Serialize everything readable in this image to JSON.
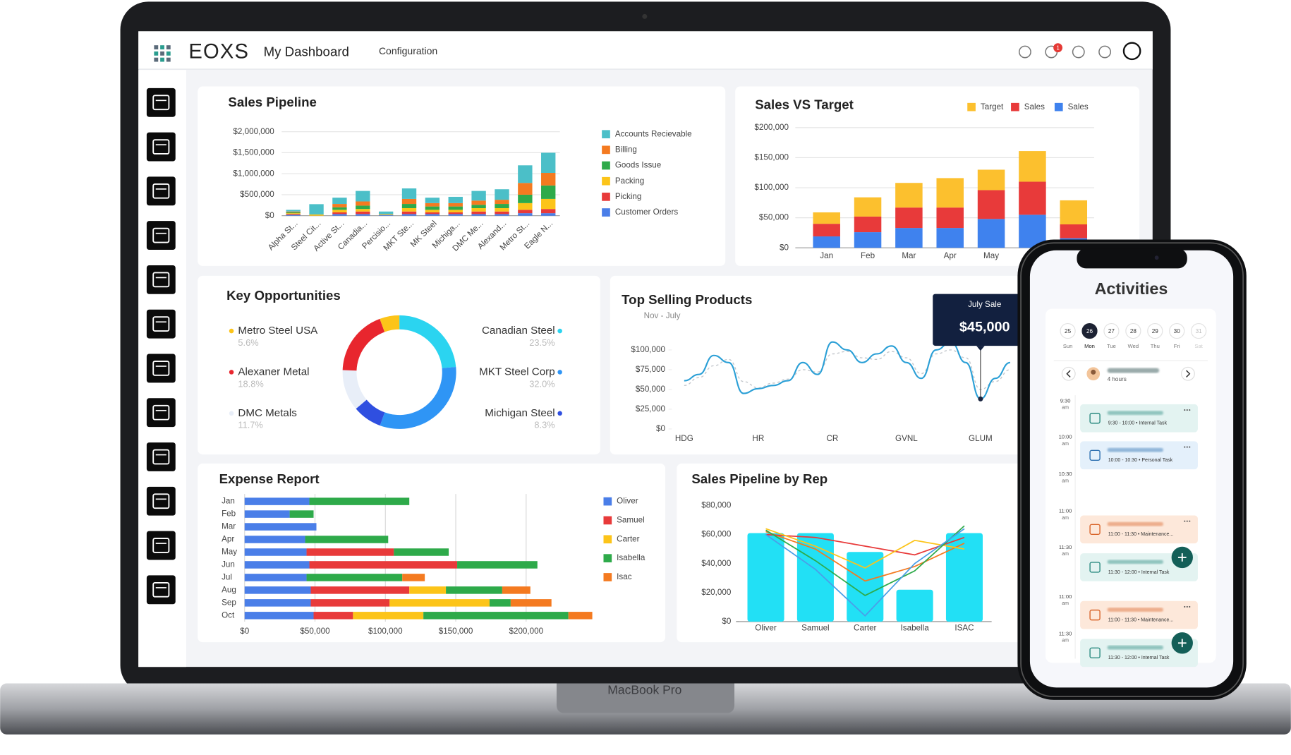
{
  "header": {
    "logo": "EOXS",
    "title": "My Dashboard",
    "nav": "Configuration",
    "notification_count": 1
  },
  "device_label": "MacBook Pro",
  "chart_data": [
    {
      "type": "bar",
      "stacked": true,
      "title": "Sales Pipeline",
      "categories": [
        "Alpha St...",
        "Steel Cit...",
        "Active St...",
        "Canadia...",
        "Percisio...",
        "MKT Ste...",
        "MK Steel",
        "Michiga...",
        "DMC Me...",
        "Alexand...",
        "Metro St...",
        "Eagle N..."
      ],
      "series": [
        {
          "name": "Accounts Recievable",
          "color": "#4bbfc8",
          "values": [
            40000,
            245000,
            150000,
            250000,
            60000,
            250000,
            130000,
            150000,
            230000,
            250000,
            420000,
            480000
          ]
        },
        {
          "name": "Billing",
          "color": "#f47a20",
          "values": [
            20000,
            0,
            80000,
            100000,
            0,
            120000,
            80000,
            80000,
            100000,
            100000,
            280000,
            300000
          ]
        },
        {
          "name": "Goods Issue",
          "color": "#2eaa4a",
          "values": [
            20000,
            0,
            60000,
            80000,
            0,
            100000,
            80000,
            80000,
            80000,
            100000,
            200000,
            320000
          ]
        },
        {
          "name": "Packing",
          "color": "#fcc419",
          "values": [
            20000,
            30000,
            60000,
            60000,
            20000,
            80000,
            60000,
            60000,
            80000,
            80000,
            160000,
            240000
          ]
        },
        {
          "name": "Picking",
          "color": "#e83a3a",
          "values": [
            20000,
            0,
            40000,
            60000,
            0,
            60000,
            40000,
            40000,
            60000,
            60000,
            80000,
            100000
          ]
        },
        {
          "name": "Customer Orders",
          "color": "#4a7ee8",
          "values": [
            20000,
            0,
            40000,
            40000,
            20000,
            40000,
            40000,
            40000,
            40000,
            40000,
            60000,
            60000
          ]
        }
      ],
      "ylim": [
        0,
        2000000
      ],
      "yticks": [
        {
          "value": 0,
          "label": "$0"
        },
        {
          "value": 500000,
          "label": "$500,000"
        },
        {
          "value": 1000000,
          "label": "$1,000,000"
        },
        {
          "value": 1500000,
          "label": "$1,500,000"
        },
        {
          "value": 2000000,
          "label": "$2,000,000"
        }
      ],
      "grid": true,
      "legend": "right"
    },
    {
      "type": "bar",
      "stacked": true,
      "title": "Sales VS  Target",
      "categories": [
        "Jan",
        "Feb",
        "Mar",
        "Apr",
        "May",
        null,
        null
      ],
      "series": [
        {
          "name": "Target",
          "color": "#fcc02e",
          "values": [
            19000,
            32000,
            41000,
            49000,
            34000,
            51000,
            40000
          ]
        },
        {
          "name": "Sales",
          "color": "#e83a3a",
          "values": [
            21000,
            26000,
            34000,
            34000,
            48000,
            55000,
            23000
          ]
        },
        {
          "name": "Sales",
          "color": "#3f82ee",
          "values": [
            19000,
            26000,
            33000,
            33000,
            48000,
            55000,
            16000
          ]
        }
      ],
      "ylim": [
        0,
        200000
      ],
      "yticks": [
        {
          "value": 0,
          "label": "$0"
        },
        {
          "value": 50000,
          "label": "$50,000"
        },
        {
          "value": 100000,
          "label": "$100,000"
        },
        {
          "value": 150000,
          "label": "$150,000"
        },
        {
          "value": 200000,
          "label": "$200,000"
        }
      ],
      "grid": true,
      "legend": "top"
    },
    {
      "type": "donut",
      "title": "Key Opportunities",
      "categories": [
        "Canadian Steel",
        "MKT Steel Corp",
        "Michigan Steel",
        "DMC Metals",
        "Alexaner Metal",
        "Metro Steel USA"
      ],
      "values": [
        23.5,
        32.0,
        8.3,
        11.7,
        18.8,
        5.6
      ],
      "value_labels": [
        "23.5%",
        "32.0%",
        "8.3%",
        "11.7%",
        "18.8%",
        "5.6%"
      ],
      "colors": [
        "#2bd4f0",
        "#2f95f5",
        "#2f4fe0",
        "#e8eef8",
        "#e8262e",
        "#fcc419"
      ]
    },
    {
      "type": "line",
      "title": "Top Selling Products",
      "subtitle": "Nov - July",
      "categories": [
        "HDG",
        null,
        null,
        null,
        null,
        "HR",
        null,
        null,
        null,
        null,
        "CR",
        null,
        null,
        null,
        null,
        "GVNL",
        null,
        null,
        null,
        null,
        "GLUM",
        null,
        null
      ],
      "series": [
        {
          "color": "#2a9fd6",
          "values": [
            61000,
            69000,
            93000,
            84000,
            45000,
            51000,
            55000,
            61000,
            84000,
            69000,
            110000,
            100000,
            84000,
            95000,
            105000,
            84000,
            64000,
            100000,
            110000,
            84000,
            38000,
            64000,
            84000
          ]
        },
        {
          "color": "#c3c7cc",
          "dashed": true,
          "values": [
            55000,
            65000,
            80000,
            88000,
            60000,
            52000,
            58000,
            63000,
            75000,
            72000,
            95000,
            98000,
            90000,
            88000,
            98000,
            90000,
            70000,
            95000,
            100000,
            90000,
            50000,
            60000,
            75000
          ]
        }
      ],
      "ylim": [
        0,
        125000
      ],
      "yticks": [
        {
          "value": 0,
          "label": "$0"
        },
        {
          "value": 25000,
          "label": "$25,000"
        },
        {
          "value": 50000,
          "label": "$50,000"
        },
        {
          "value": 75000,
          "label": "$75,000"
        },
        {
          "value": 100000,
          "label": "$100,000"
        }
      ],
      "annotation": {
        "title": "July Sale",
        "text": "$45,000"
      }
    },
    {
      "type": "bar",
      "orientation": "horizontal",
      "stacked": true,
      "title": "Expense Report",
      "categories": [
        "Jan",
        "Feb",
        "Mar",
        "Apr",
        "May",
        "Jun",
        "Jul",
        "Aug",
        "Sep",
        "Oct"
      ],
      "series": [
        {
          "name": "Oliver",
          "color": "#4a7ee8",
          "values": [
            46000,
            32000,
            51000,
            43000,
            44000,
            46000,
            44000,
            47000,
            47000,
            49000
          ]
        },
        {
          "name": "Samuel",
          "color": "#e83a3a",
          "values": [
            0,
            0,
            0,
            0,
            62000,
            105000,
            0,
            70000,
            56000,
            28000
          ]
        },
        {
          "name": "Carter",
          "color": "#fcc419",
          "values": [
            0,
            0,
            0,
            0,
            0,
            0,
            0,
            26000,
            71000,
            50000
          ]
        },
        {
          "name": "Isabella",
          "color": "#2eaa4a",
          "values": [
            71000,
            17000,
            0,
            59000,
            39000,
            57000,
            68000,
            40000,
            15000,
            103000
          ]
        },
        {
          "name": "Isac",
          "color": "#f47a20",
          "values": [
            0,
            0,
            0,
            0,
            0,
            0,
            16000,
            20000,
            29000,
            17000
          ]
        }
      ],
      "xlim": [
        0,
        250000
      ],
      "xticks": [
        {
          "value": 0,
          "label": "$0"
        },
        {
          "value": 50000,
          "label": "$50,000"
        },
        {
          "value": 100000,
          "label": "$100,000"
        },
        {
          "value": 150000,
          "label": "$150,000"
        },
        {
          "value": 200000,
          "label": "$200,000"
        }
      ],
      "grid": true,
      "legend": "right"
    },
    {
      "type": "combo",
      "title": "Sales Pipeline by Rep",
      "categories": [
        "Oliver",
        "Samuel",
        "Carter",
        "Isabella",
        "ISAC"
      ],
      "series": [
        {
          "type": "bar",
          "color": "#22e0f5",
          "values": [
            61000,
            61000,
            48000,
            22000,
            61000
          ]
        },
        {
          "type": "line",
          "color": "#f47a20",
          "values": [
            62000,
            50000,
            28000,
            38000,
            54000
          ]
        },
        {
          "type": "line",
          "color": "#e83a3a",
          "values": [
            60000,
            58000,
            52000,
            46000,
            58000
          ]
        },
        {
          "type": "line",
          "color": "#fcc419",
          "values": [
            64000,
            52000,
            37000,
            56000,
            50000
          ]
        },
        {
          "type": "line",
          "color": "#2eaa4a",
          "values": [
            63000,
            42000,
            18000,
            35000,
            66000
          ]
        },
        {
          "type": "line",
          "color": "#4a9ee8",
          "values": [
            60000,
            36000,
            4000,
            40000,
            64000
          ]
        }
      ],
      "ylim": [
        0,
        80000
      ],
      "yticks": [
        {
          "value": 0,
          "label": "$0"
        },
        {
          "value": 20000,
          "label": "$20,000"
        },
        {
          "value": 40000,
          "label": "$40,000"
        },
        {
          "value": 60000,
          "label": "$60,000"
        },
        {
          "value": 80000,
          "label": "$80,000"
        }
      ]
    }
  ],
  "phone": {
    "title": "Activities",
    "days": [
      {
        "date": 25,
        "day": "Sun"
      },
      {
        "date": 26,
        "day": "Mon"
      },
      {
        "date": 27,
        "day": "Tue"
      },
      {
        "date": 28,
        "day": "Wed"
      },
      {
        "date": 29,
        "day": "Thu"
      },
      {
        "date": 30,
        "day": "Fri"
      },
      {
        "date": 31,
        "day": "Sat"
      }
    ],
    "duration": "4 hours",
    "times": [
      {
        "time": "9:30",
        "period": "am"
      },
      {
        "time": "10:00",
        "period": "am"
      },
      {
        "time": "10:30",
        "period": "am"
      },
      {
        "time": "11:00",
        "period": "am"
      },
      {
        "time": "11:30",
        "period": "am"
      },
      {
        "time": "11:00",
        "period": "am"
      },
      {
        "time": "11:30",
        "period": "am"
      }
    ],
    "events": [
      "9:30 - 10:00 • Internal Task",
      "10:00 - 10:30 • Personal Task",
      "11:00 - 11:30 • Maintenance...",
      "11:30 - 12:00 • Internal Task",
      "11:00 - 11:30 • Maintenance...",
      "11:30 - 12:00 • Internal Task"
    ]
  }
}
